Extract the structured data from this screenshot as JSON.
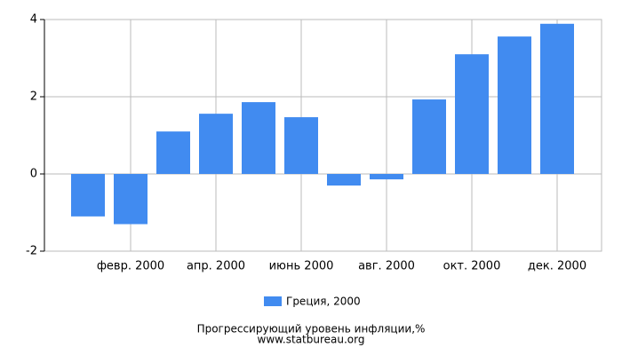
{
  "chart_data": {
    "type": "bar",
    "categories": [
      null,
      "февр. 2000",
      null,
      "апр. 2000",
      null,
      "июнь 2000",
      null,
      "авг. 2000",
      null,
      "окт. 2000",
      null,
      "дек. 2000"
    ],
    "series": [
      {
        "name": "Греция, 2000",
        "color": "#418bf0",
        "values": [
          -1.1,
          -1.3,
          1.1,
          1.56,
          1.86,
          1.47,
          -0.3,
          -0.14,
          1.93,
          3.1,
          3.56,
          3.89
        ]
      }
    ],
    "ylim": [
      -2,
      4
    ],
    "yticks": [
      -2,
      0,
      2,
      4
    ],
    "grid": true,
    "caption": "Прогрессирующий уровень инфляции,%",
    "source": "www.statbureau.org"
  }
}
